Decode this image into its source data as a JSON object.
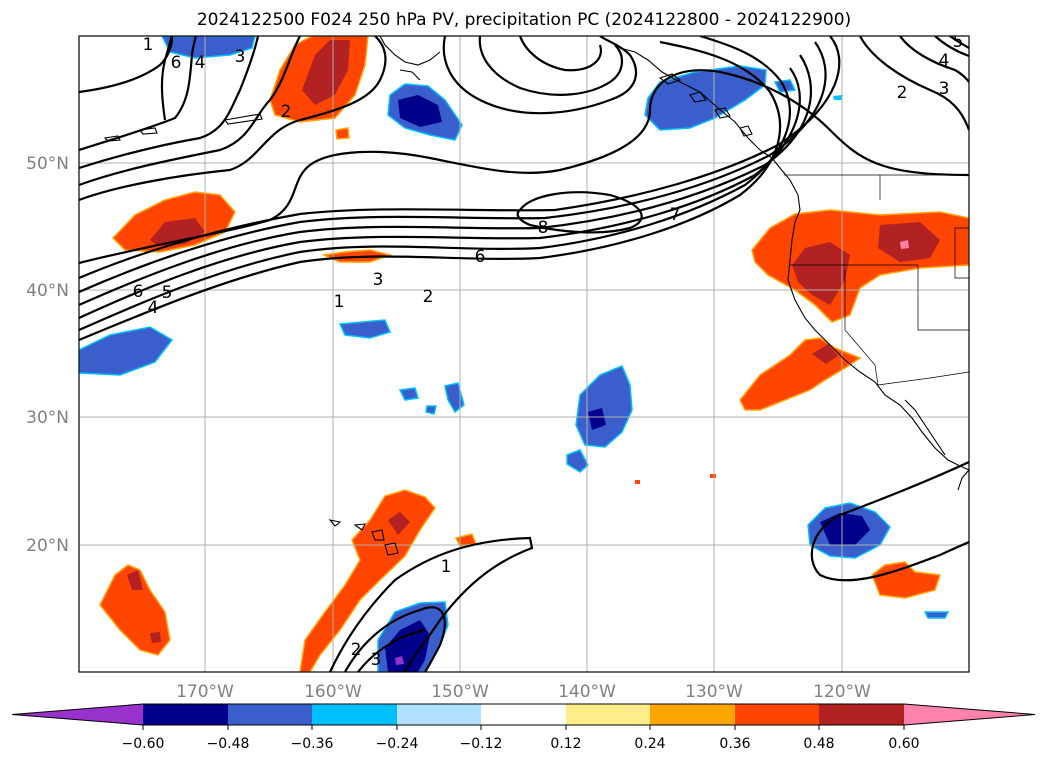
{
  "title": "2024122500 F024 250 hPa PV, precipitation PC (2024122800 - 2024122900)",
  "lat_labels": [
    "50°N",
    "40°N",
    "30°N",
    "20°N"
  ],
  "lon_labels": [
    "170°W",
    "160°W",
    "150°W",
    "140°W",
    "130°W",
    "120°W"
  ],
  "contour_labels": [
    "1",
    "2",
    "3",
    "4",
    "5",
    "6",
    "7",
    "8",
    "6",
    "4",
    "5",
    "6",
    "3",
    "2",
    "1",
    "1",
    "2",
    "3",
    "2",
    "3",
    "4"
  ],
  "colorbar": {
    "tick_labels": [
      "−0.60",
      "−0.48",
      "−0.36",
      "−0.24",
      "−0.12",
      "0.12",
      "0.24",
      "0.36",
      "0.48",
      "0.60"
    ],
    "colors": [
      "#9932cc",
      "#00008b",
      "#3a5fcd",
      "#00bfff",
      "#b0e2ff",
      "#ffffff",
      "#ffec8b",
      "#ffa500",
      "#ff4500",
      "#b22222",
      "#ff82ab"
    ]
  }
}
